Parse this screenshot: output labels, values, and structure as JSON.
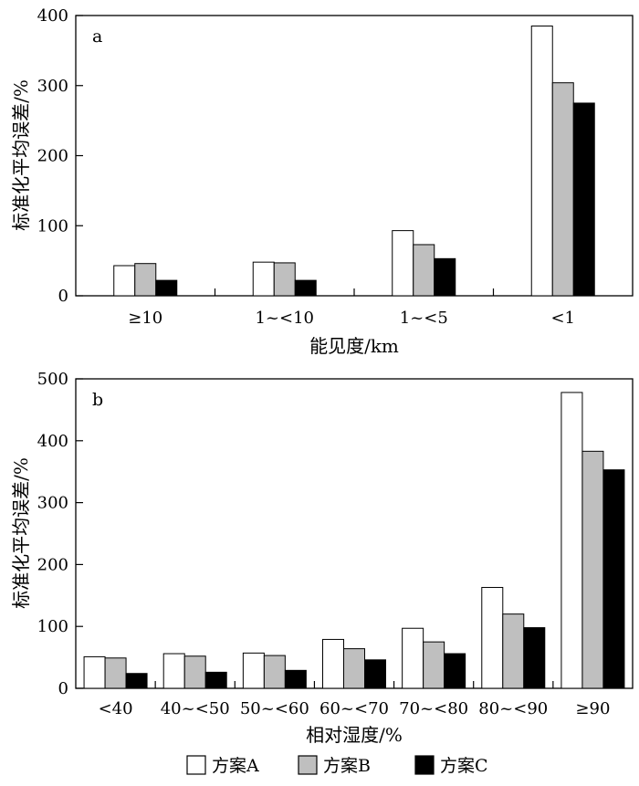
{
  "chart_data": [
    {
      "type": "bar",
      "panel_label": "a",
      "categories": [
        "≥10",
        "1~<10",
        "1~<5",
        "<1"
      ],
      "series": [
        {
          "name": "方案A",
          "values": [
            43,
            48,
            93,
            385
          ]
        },
        {
          "name": "方案B",
          "values": [
            46,
            47,
            73,
            304
          ]
        },
        {
          "name": "方案C",
          "values": [
            22,
            22,
            53,
            275
          ]
        }
      ],
      "xlabel": "能见度/km",
      "ylabel": "标准化平均误差/%",
      "ylim": [
        0,
        400
      ],
      "yticks": [
        0,
        100,
        200,
        300,
        400
      ]
    },
    {
      "type": "bar",
      "panel_label": "b",
      "categories": [
        "<40",
        "40~<50",
        "50~<60",
        "60~<70",
        "70~<80",
        "80~<90",
        "≥90"
      ],
      "series": [
        {
          "name": "方案A",
          "values": [
            51,
            56,
            57,
            79,
            97,
            163,
            478
          ]
        },
        {
          "name": "方案B",
          "values": [
            49,
            52,
            53,
            64,
            75,
            120,
            383
          ]
        },
        {
          "name": "方案C",
          "values": [
            24,
            26,
            29,
            46,
            56,
            98,
            353
          ]
        }
      ],
      "xlabel": "相对湿度/%",
      "ylabel": "标准化平均误差/%",
      "ylim": [
        0,
        500
      ],
      "yticks": [
        0,
        100,
        200,
        300,
        400,
        500
      ]
    }
  ],
  "legend": {
    "placement": "bottom",
    "items": [
      {
        "label": "方案A",
        "color": "#ffffff"
      },
      {
        "label": "方案B",
        "color": "#bfbfbf"
      },
      {
        "label": "方案C",
        "color": "#000000"
      }
    ]
  },
  "colors": [
    "#ffffff",
    "#bfbfbf",
    "#000000"
  ]
}
